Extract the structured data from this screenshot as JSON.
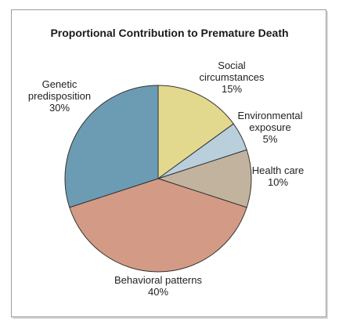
{
  "chart_data": {
    "type": "pie",
    "title": "Proportional Contribution to Premature Death",
    "slices": [
      {
        "label_lines": [
          "Social",
          "circumstances"
        ],
        "value": 15,
        "value_text": "15%",
        "color": "#e2d98e"
      },
      {
        "label_lines": [
          "Environmental",
          "exposure"
        ],
        "value": 5,
        "value_text": "5%",
        "color": "#b9cfdc"
      },
      {
        "label_lines": [
          "Health care"
        ],
        "value": 10,
        "value_text": "10%",
        "color": "#c2b39f"
      },
      {
        "label_lines": [
          "Behavioral patterns"
        ],
        "value": 40,
        "value_text": "40%",
        "color": "#d39b85"
      },
      {
        "label_lines": [
          "Genetic",
          "predisposition"
        ],
        "value": 30,
        "value_text": "30%",
        "color": "#6c9cb3"
      }
    ]
  }
}
